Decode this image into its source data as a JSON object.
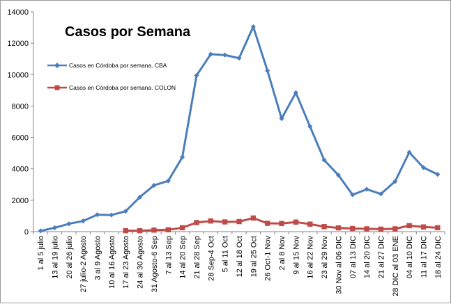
{
  "chart_data": {
    "type": "line",
    "title": "Casos por Semana",
    "xlabel": "",
    "ylabel": "",
    "ylim": [
      0,
      14000
    ],
    "yticks": [
      0,
      2000,
      4000,
      6000,
      8000,
      10000,
      12000,
      14000
    ],
    "grid": false,
    "legend_position": "top-left",
    "categories": [
      "1 al 5 julio",
      "13 al 19 julio",
      "20 al 26 julio",
      "27 julio-2 Agosto",
      "3 al 9 Agosto",
      "10 al 16 Agosto",
      "17 al 23 Agosto",
      "24 al 30 Agosto",
      "31 Agosto-6 Sep",
      "7 al 13 Sep",
      "14 al 20 Sep",
      "21 al 28 Sep",
      "28 Sep-4 Oct",
      "5 al 11 Oct",
      "12 al 18 Oct",
      "19 al 25 Oct",
      "26 Oct-1 Nov",
      "2 al 8 Nov",
      "9 al 15 Nov",
      "16 al 22 Nov",
      "23 al 29 Nov",
      "30 Nov al 06 DIC",
      "07 al 13 DIC",
      "14 al 20 DIC",
      "21 al 27 DIC",
      "28 DIC al 03 ENE",
      "04 al 10 DIC",
      "11 al 17 DIC",
      "18 al 24 DIC"
    ],
    "series": [
      {
        "name": "Casos en Córdoba por semana. CBA",
        "color": "#4a7ebb",
        "marker": "diamond",
        "values": [
          50,
          250,
          500,
          680,
          1080,
          1060,
          1300,
          2200,
          2950,
          3230,
          4750,
          9950,
          11300,
          11250,
          11050,
          13050,
          10250,
          7200,
          8850,
          6700,
          4560,
          3600,
          2350,
          2700,
          2400,
          3200,
          5050,
          4080,
          3650
        ]
      },
      {
        "name": "Casos en Córdoba por semana. COLON",
        "color": "#be4b48",
        "marker": "square",
        "values": [
          null,
          null,
          null,
          null,
          null,
          null,
          60,
          60,
          100,
          120,
          250,
          580,
          680,
          620,
          640,
          870,
          530,
          520,
          610,
          480,
          320,
          240,
          200,
          180,
          160,
          180,
          380,
          300,
          250
        ]
      }
    ]
  }
}
